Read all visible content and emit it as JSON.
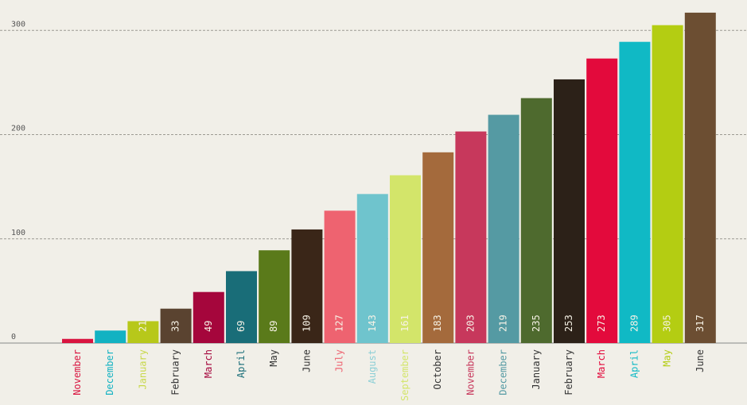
{
  "chart_data": {
    "type": "bar",
    "title": "",
    "xlabel": "",
    "ylabel": "",
    "ylim": [
      0,
      317
    ],
    "yticks": [
      "0",
      "100",
      "200",
      "300"
    ],
    "grid": true,
    "categories": [
      "November",
      "December",
      "January",
      "February",
      "March",
      "April",
      "May",
      "June",
      "July",
      "August",
      "September",
      "October",
      "November",
      "December",
      "January",
      "February",
      "March",
      "April",
      "May",
      "June"
    ],
    "values": [
      4,
      12,
      21,
      33,
      49,
      69,
      89,
      109,
      127,
      143,
      161,
      183,
      203,
      219,
      235,
      253,
      273,
      289,
      305,
      317
    ],
    "value_labels": [
      "",
      "",
      "21",
      "33",
      "49",
      "69",
      "89",
      "109",
      "127",
      "143",
      "161",
      "183",
      "203",
      "219",
      "235",
      "253",
      "273",
      "289",
      "305",
      "317"
    ],
    "colors": [
      "#d9143f",
      "#12b2c2",
      "#b7c81a",
      "#5a4330",
      "#a5063c",
      "#196d78",
      "#5a7a1a",
      "#3a2618",
      "#ee6370",
      "#6fc4cd",
      "#d3e56a",
      "#a46a3c",
      "#c7385c",
      "#559aa3",
      "#4e6a2e",
      "#2c2118",
      "#e30a3c",
      "#10b9c5",
      "#b4cd12",
      "#6c4e32"
    ],
    "label_colors": [
      "#d9143f",
      "#12b2c2",
      "#c8d84a",
      "#333333",
      "#a5063c",
      "#196d78",
      "#333333",
      "#333333",
      "#ee6370",
      "#8ccfd6",
      "#d3e56a",
      "#333333",
      "#c7385c",
      "#559aa3",
      "#333333",
      "#333333",
      "#e30a3c",
      "#10b9c5",
      "#b4cd12",
      "#333333"
    ]
  }
}
